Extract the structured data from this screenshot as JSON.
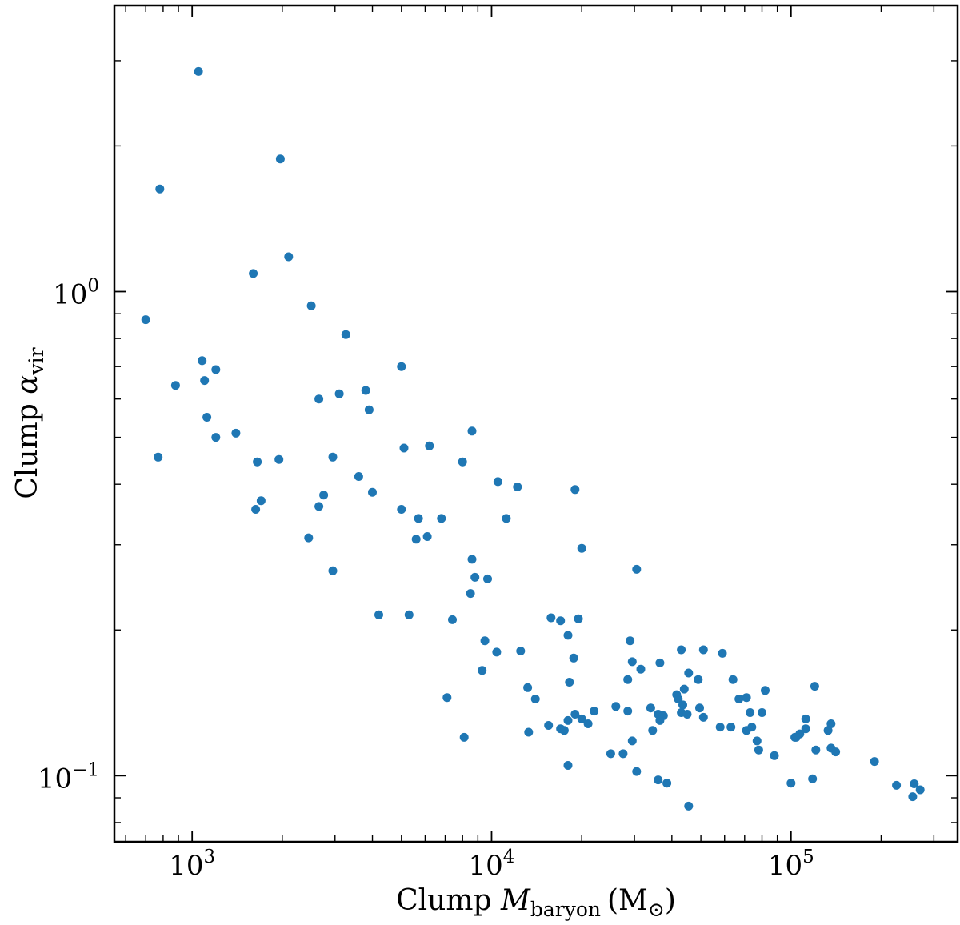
{
  "chart_data": {
    "type": "scatter",
    "title": "",
    "xlabel": {
      "prefix": "Clump ",
      "symbol": "M",
      "subscript": "baryon",
      "unit": "(M",
      "unit_sub": "⊙",
      "unit_close": ")"
    },
    "ylabel": {
      "prefix": "Clump ",
      "symbol": "α",
      "subscript": "vir"
    },
    "xscale": "log",
    "yscale": "log",
    "xlim": [
      550,
      360000
    ],
    "ylim": [
      0.073,
      3.9
    ],
    "x_tick_labels": [
      {
        "value": 1000,
        "base": "10",
        "exp": "3"
      },
      {
        "value": 10000,
        "base": "10",
        "exp": "4"
      },
      {
        "value": 100000,
        "base": "10",
        "exp": "5"
      }
    ],
    "y_tick_labels": [
      {
        "value": 0.1,
        "base": "10",
        "exp": "−1"
      },
      {
        "value": 1,
        "base": "10",
        "exp": "0"
      }
    ],
    "grid": false,
    "legend": "none",
    "marker_color": "#1f77b4",
    "series": [
      {
        "points": [
          [
            1050,
            2.85
          ],
          [
            1970,
            1.88
          ],
          [
            780,
            1.63
          ],
          [
            2100,
            1.18
          ],
          [
            1600,
            1.09
          ],
          [
            700,
            0.875
          ],
          [
            2500,
            0.935
          ],
          [
            3260,
            0.815
          ],
          [
            1080,
            0.72
          ],
          [
            1200,
            0.69
          ],
          [
            1100,
            0.655
          ],
          [
            880,
            0.64
          ],
          [
            5000,
            0.7
          ],
          [
            2650,
            0.6
          ],
          [
            3100,
            0.615
          ],
          [
            3800,
            0.625
          ],
          [
            3900,
            0.57
          ],
          [
            1120,
            0.55
          ],
          [
            1400,
            0.51
          ],
          [
            1200,
            0.5
          ],
          [
            8600,
            0.515
          ],
          [
            770,
            0.455
          ],
          [
            1950,
            0.45
          ],
          [
            2950,
            0.455
          ],
          [
            1650,
            0.445
          ],
          [
            5100,
            0.475
          ],
          [
            6200,
            0.48
          ],
          [
            8000,
            0.445
          ],
          [
            10500,
            0.405
          ],
          [
            12200,
            0.395
          ],
          [
            3600,
            0.415
          ],
          [
            4000,
            0.385
          ],
          [
            19000,
            0.39
          ],
          [
            2750,
            0.38
          ],
          [
            2650,
            0.36
          ],
          [
            1700,
            0.37
          ],
          [
            1630,
            0.355
          ],
          [
            5000,
            0.355
          ],
          [
            5700,
            0.34
          ],
          [
            6800,
            0.34
          ],
          [
            11200,
            0.34
          ],
          [
            2450,
            0.31
          ],
          [
            5600,
            0.308
          ],
          [
            6100,
            0.312
          ],
          [
            20000,
            0.295
          ],
          [
            8600,
            0.28
          ],
          [
            2950,
            0.265
          ],
          [
            30500,
            0.267
          ],
          [
            8800,
            0.257
          ],
          [
            9700,
            0.255
          ],
          [
            8500,
            0.238
          ],
          [
            4200,
            0.215
          ],
          [
            5300,
            0.215
          ],
          [
            7400,
            0.21
          ],
          [
            15800,
            0.212
          ],
          [
            17000,
            0.209
          ],
          [
            19500,
            0.211
          ],
          [
            18000,
            0.195
          ],
          [
            9500,
            0.19
          ],
          [
            29000,
            0.19
          ],
          [
            10400,
            0.18
          ],
          [
            12500,
            0.181
          ],
          [
            18800,
            0.175
          ],
          [
            43000,
            0.182
          ],
          [
            51000,
            0.182
          ],
          [
            59000,
            0.179
          ],
          [
            29500,
            0.172
          ],
          [
            31500,
            0.166
          ],
          [
            36500,
            0.171
          ],
          [
            9300,
            0.165
          ],
          [
            45500,
            0.163
          ],
          [
            28500,
            0.158
          ],
          [
            18200,
            0.156
          ],
          [
            49000,
            0.158
          ],
          [
            64000,
            0.158
          ],
          [
            13200,
            0.152
          ],
          [
            44000,
            0.151
          ],
          [
            82000,
            0.15
          ],
          [
            41500,
            0.147
          ],
          [
            120000,
            0.153
          ],
          [
            7100,
            0.145
          ],
          [
            14000,
            0.144
          ],
          [
            42000,
            0.144
          ],
          [
            67000,
            0.144
          ],
          [
            71000,
            0.145
          ],
          [
            26000,
            0.139
          ],
          [
            34000,
            0.138
          ],
          [
            43500,
            0.14
          ],
          [
            49500,
            0.138
          ],
          [
            22000,
            0.136
          ],
          [
            19000,
            0.134
          ],
          [
            28500,
            0.136
          ],
          [
            36000,
            0.134
          ],
          [
            37500,
            0.133
          ],
          [
            43000,
            0.135
          ],
          [
            45000,
            0.134
          ],
          [
            51000,
            0.132
          ],
          [
            73000,
            0.135
          ],
          [
            80000,
            0.135
          ],
          [
            18000,
            0.13
          ],
          [
            20000,
            0.131
          ],
          [
            21000,
            0.128
          ],
          [
            36500,
            0.13
          ],
          [
            17000,
            0.125
          ],
          [
            15500,
            0.127
          ],
          [
            34500,
            0.124
          ],
          [
            58000,
            0.126
          ],
          [
            63000,
            0.126
          ],
          [
            71000,
            0.124
          ],
          [
            74000,
            0.126
          ],
          [
            112000,
            0.131
          ],
          [
            136000,
            0.128
          ],
          [
            8100,
            0.12
          ],
          [
            13300,
            0.123
          ],
          [
            17500,
            0.124
          ],
          [
            29500,
            0.118
          ],
          [
            77000,
            0.118
          ],
          [
            103000,
            0.12
          ],
          [
            107000,
            0.122
          ],
          [
            112000,
            0.125
          ],
          [
            133000,
            0.124
          ],
          [
            104000,
            0.12
          ],
          [
            121000,
            0.113
          ],
          [
            136000,
            0.114
          ],
          [
            141000,
            0.112
          ],
          [
            25000,
            0.111
          ],
          [
            27500,
            0.111
          ],
          [
            78000,
            0.113
          ],
          [
            88000,
            0.11
          ],
          [
            18000,
            0.105
          ],
          [
            30500,
            0.102
          ],
          [
            190000,
            0.107
          ],
          [
            36000,
            0.098
          ],
          [
            38500,
            0.0965
          ],
          [
            118000,
            0.0985
          ],
          [
            100000,
            0.0965
          ],
          [
            225000,
            0.0955
          ],
          [
            258000,
            0.0962
          ],
          [
            270000,
            0.0935
          ],
          [
            255000,
            0.0905
          ],
          [
            45500,
            0.0865
          ]
        ]
      }
    ]
  }
}
